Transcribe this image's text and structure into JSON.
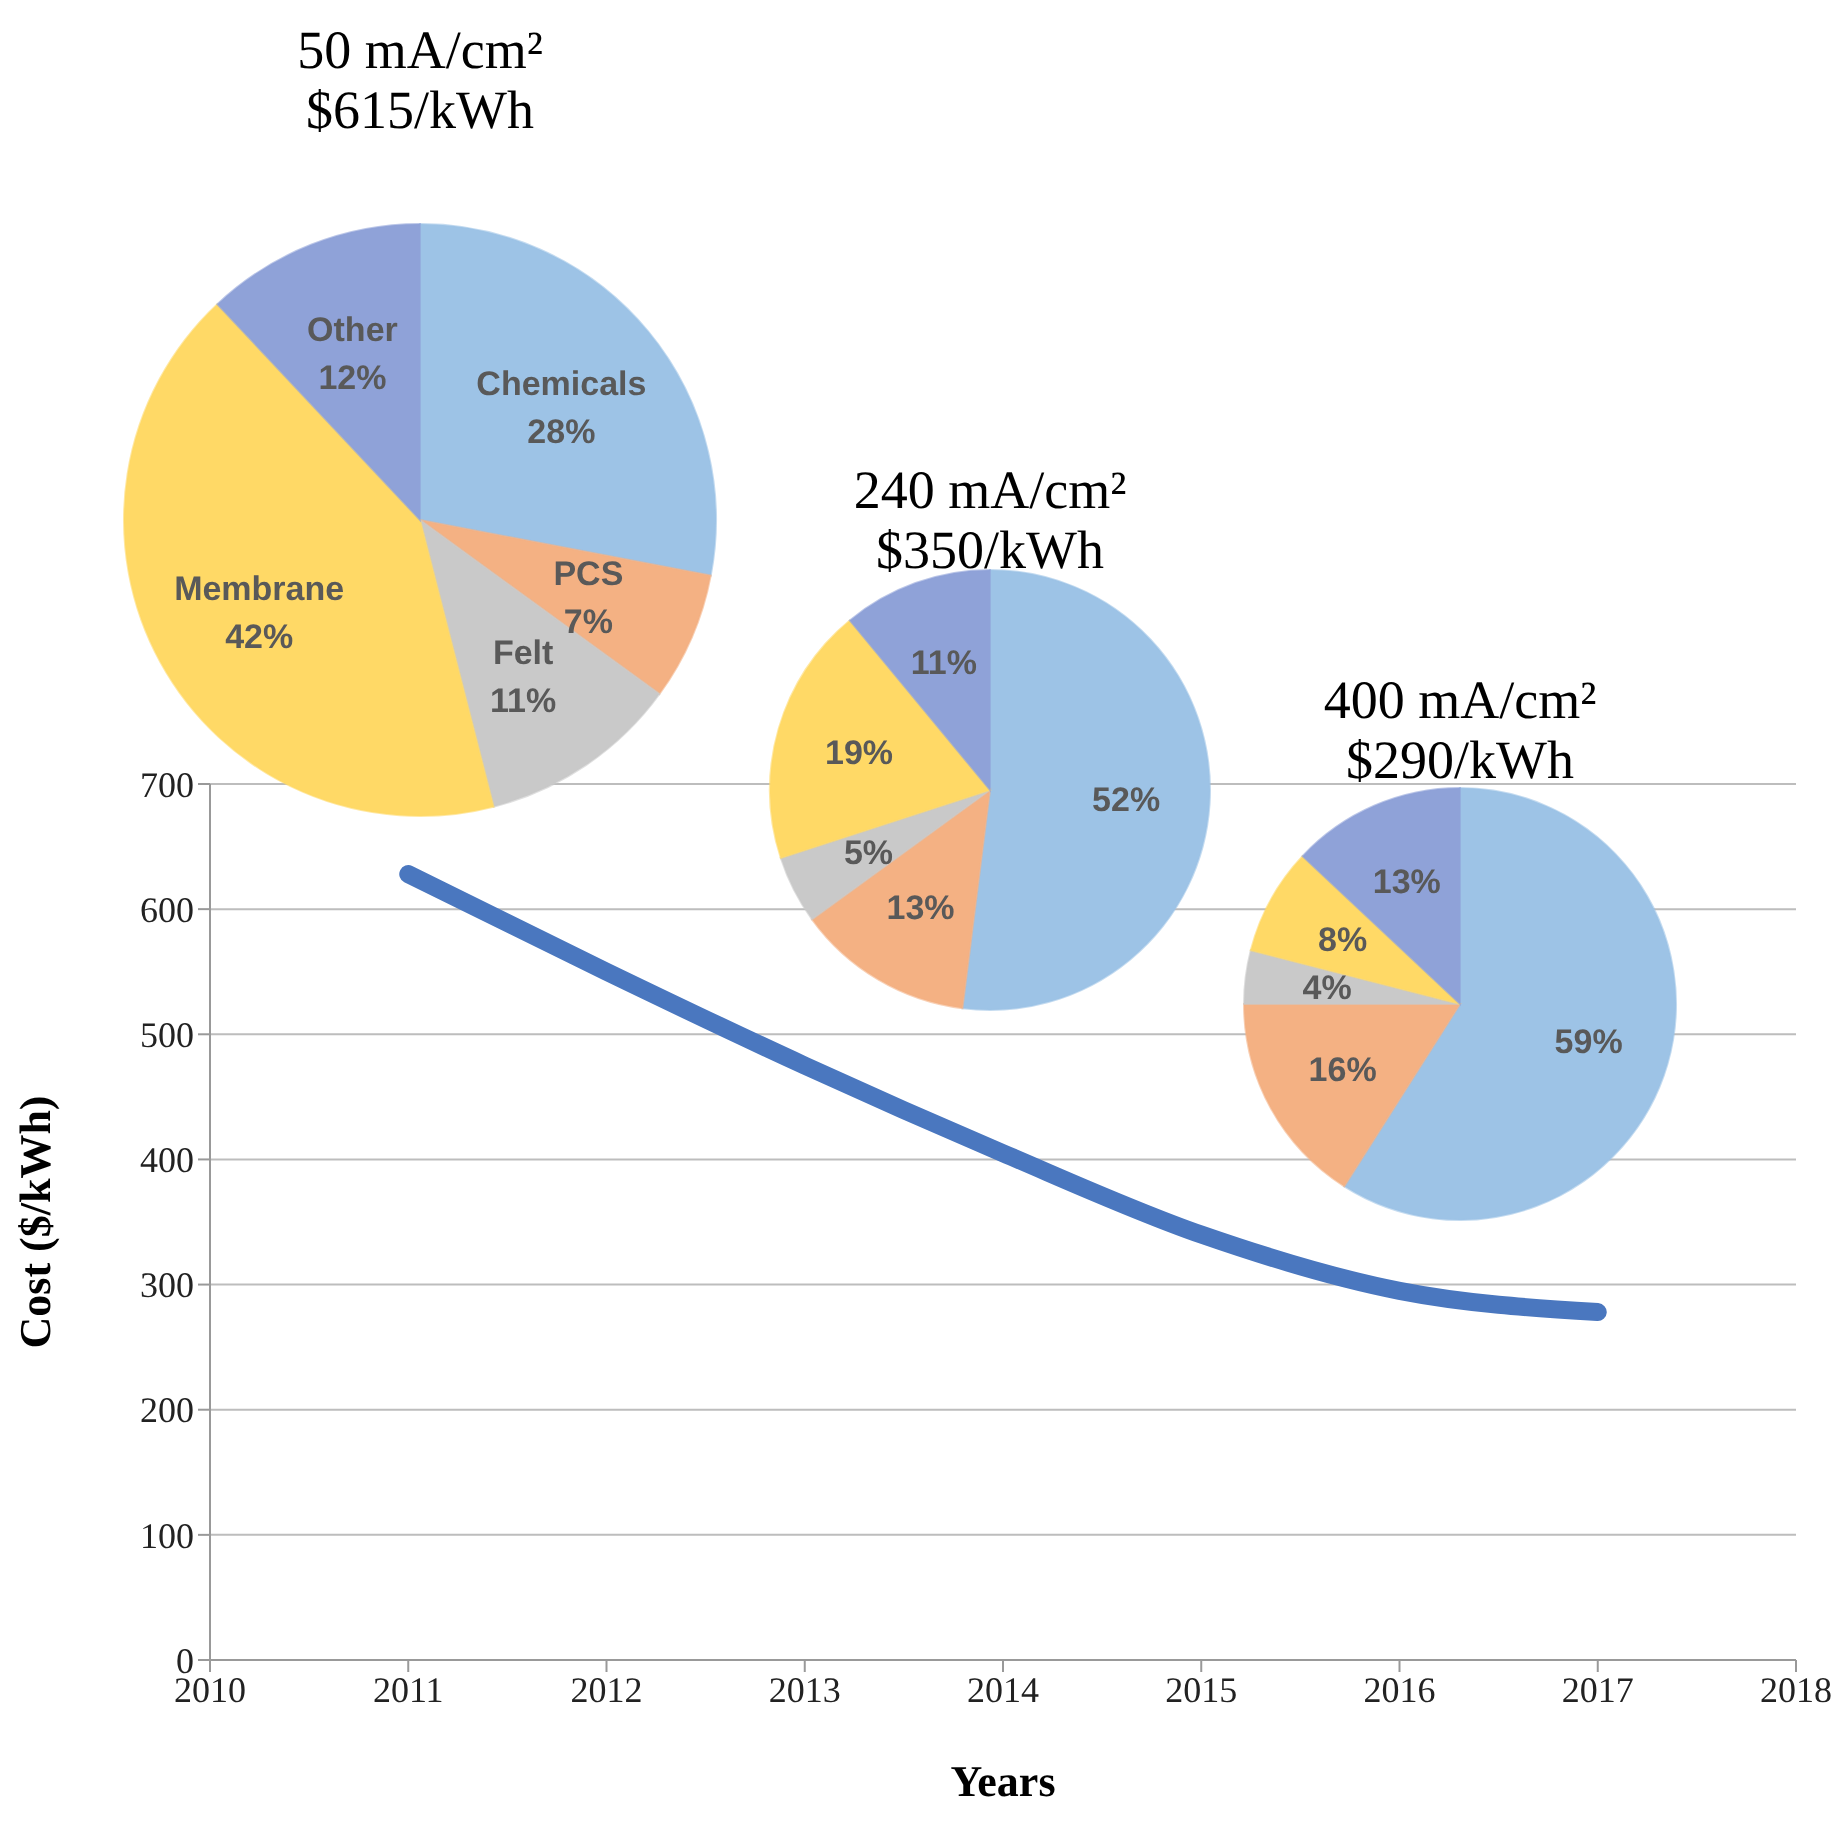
{
  "chart_data": [
    {
      "type": "line",
      "xlabel": "Years",
      "ylabel": "Cost ($/kWh)",
      "x": [
        2011,
        2012,
        2013,
        2014,
        2015,
        2016,
        2017
      ],
      "series": [
        {
          "color": "#4a77bf",
          "values": [
            628,
            550,
            475,
            405,
            340,
            295,
            278
          ]
        }
      ],
      "xlim": [
        2010,
        2018
      ],
      "xticks": [
        2010,
        2011,
        2012,
        2013,
        2014,
        2015,
        2016,
        2017,
        2018
      ],
      "ylim": [
        0,
        700
      ],
      "yticks": [
        0,
        100,
        200,
        300,
        400,
        500,
        600,
        700
      ],
      "grid": "y",
      "marker": "none"
    },
    {
      "type": "pie",
      "title": "50 mA/cm²",
      "subtitle": "$615/kWh",
      "categories": [
        "Chemicals",
        "PCS",
        "Felt",
        "Membrane",
        "Other"
      ],
      "values": [
        28,
        7,
        11,
        42,
        12
      ],
      "value_labels": [
        "28%",
        "7%",
        "11%",
        "42%",
        "12%"
      ],
      "colors": [
        "#9dc3e6",
        "#f4b183",
        "#c9c9c9",
        "#ffd966",
        "#8fa2d8"
      ]
    },
    {
      "type": "pie",
      "title": "240 mA/cm²",
      "subtitle": "$350/kWh",
      "categories": [
        null,
        null,
        null,
        null,
        null
      ],
      "values": [
        52,
        13,
        5,
        19,
        11
      ],
      "value_labels": [
        "52%",
        "13%",
        "5%",
        "19%",
        "11%"
      ],
      "colors": [
        "#9dc3e6",
        "#f4b183",
        "#c9c9c9",
        "#ffd966",
        "#8fa2d8"
      ]
    },
    {
      "type": "pie",
      "title": "400 mA/cm²",
      "subtitle": "$290/kWh",
      "categories": [
        null,
        null,
        null,
        null,
        null
      ],
      "values": [
        59,
        16,
        4,
        8,
        13
      ],
      "value_labels": [
        "59%",
        "16%",
        "4%",
        "8%",
        "13%"
      ],
      "colors": [
        "#9dc3e6",
        "#f4b183",
        "#c9c9c9",
        "#ffd966",
        "#8fa2d8"
      ]
    }
  ]
}
